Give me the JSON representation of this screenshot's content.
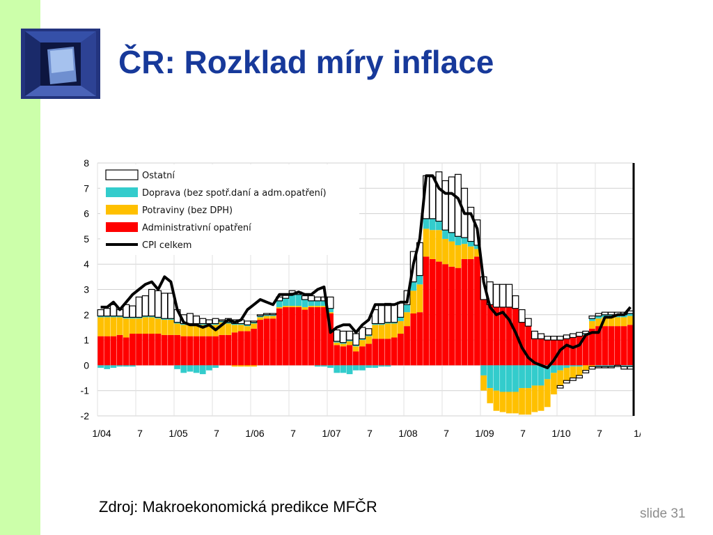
{
  "slide": {
    "title": "ČR: Rozklad míry inflace",
    "source": "Zdroj: Makroekonomická predikce MFČR",
    "slide_number": "slide 31"
  },
  "colors": {
    "side_stripe": "#ccffaa",
    "title": "#17399a",
    "ostatni": "#ffffff",
    "doprava": "#33cccc",
    "potraviny": "#ffc000",
    "administrativni": "#ff0000",
    "cpi": "#000000"
  },
  "chart_data": {
    "type": "bar",
    "stacked": true,
    "title": "",
    "xlabel": "",
    "ylabel": "",
    "ylim": [
      -2,
      8
    ],
    "yticks": [
      "8",
      "7",
      "6",
      "5",
      "4",
      "3",
      "2",
      "1",
      "0",
      "-1",
      "-2"
    ],
    "xticks": [
      "1/04",
      "7",
      "1/05",
      "7",
      "1/06",
      "7",
      "1/07",
      "7",
      "1/08",
      "7",
      "1/09",
      "7",
      "1/10",
      "7",
      "1/"
    ],
    "grid": true,
    "legend_position": "top-left",
    "categories": [
      "2004-01",
      "2004-02",
      "2004-03",
      "2004-04",
      "2004-05",
      "2004-06",
      "2004-07",
      "2004-08",
      "2004-09",
      "2004-10",
      "2004-11",
      "2004-12",
      "2005-01",
      "2005-02",
      "2005-03",
      "2005-04",
      "2005-05",
      "2005-06",
      "2005-07",
      "2005-08",
      "2005-09",
      "2005-10",
      "2005-11",
      "2005-12",
      "2006-01",
      "2006-02",
      "2006-03",
      "2006-04",
      "2006-05",
      "2006-06",
      "2006-07",
      "2006-08",
      "2006-09",
      "2006-10",
      "2006-11",
      "2006-12",
      "2007-01",
      "2007-02",
      "2007-03",
      "2007-04",
      "2007-05",
      "2007-06",
      "2007-07",
      "2007-08",
      "2007-09",
      "2007-10",
      "2007-11",
      "2007-12",
      "2008-01",
      "2008-02",
      "2008-03",
      "2008-04",
      "2008-05",
      "2008-06",
      "2008-07",
      "2008-08",
      "2008-09",
      "2008-10",
      "2008-11",
      "2008-12",
      "2009-01",
      "2009-02",
      "2009-03",
      "2009-04",
      "2009-05",
      "2009-06",
      "2009-07",
      "2009-08",
      "2009-09",
      "2009-10",
      "2009-11",
      "2009-12",
      "2010-01",
      "2010-02",
      "2010-03",
      "2010-04",
      "2010-05",
      "2010-06",
      "2010-07",
      "2010-08",
      "2010-09",
      "2010-10",
      "2010-11",
      "2010-12"
    ],
    "series": [
      {
        "name": "Administrativní opatření",
        "color": "#ff0000",
        "values": [
          1.15,
          1.15,
          1.15,
          1.2,
          1.1,
          1.25,
          1.25,
          1.25,
          1.25,
          1.25,
          1.2,
          1.2,
          1.2,
          1.15,
          1.15,
          1.15,
          1.15,
          1.15,
          1.15,
          1.2,
          1.2,
          1.3,
          1.35,
          1.35,
          1.45,
          1.8,
          1.85,
          1.85,
          2.25,
          2.3,
          2.3,
          2.3,
          2.2,
          2.3,
          2.3,
          2.3,
          2.05,
          0.8,
          0.75,
          0.8,
          0.55,
          0.75,
          0.85,
          1.05,
          1.05,
          1.05,
          1.1,
          1.25,
          1.55,
          2.05,
          2.1,
          4.3,
          4.2,
          4.1,
          4.0,
          3.9,
          3.85,
          4.2,
          4.2,
          4.3,
          2.6,
          2.4,
          2.3,
          2.3,
          2.3,
          2.25,
          1.7,
          1.55,
          1.05,
          1.05,
          1.0,
          1.0,
          1.0,
          1.05,
          1.1,
          1.15,
          1.2,
          1.45,
          1.55,
          1.55,
          1.55,
          1.55,
          1.55,
          1.6
        ]
      },
      {
        "name": "Potraviny (bez DPH)",
        "color": "#ffc000",
        "values": [
          0.75,
          0.75,
          0.75,
          0.7,
          0.75,
          0.6,
          0.6,
          0.65,
          0.65,
          0.6,
          0.6,
          0.6,
          0.45,
          0.45,
          0.45,
          0.45,
          0.45,
          0.45,
          0.45,
          0.5,
          0.45,
          0.3,
          0.25,
          0.2,
          0.2,
          0.1,
          0.1,
          0.1,
          0.05,
          0.05,
          0.05,
          0.05,
          0.1,
          0.05,
          0.05,
          0.05,
          0.05,
          0.1,
          0.1,
          0.15,
          0.2,
          0.25,
          0.3,
          0.55,
          0.55,
          0.6,
          0.55,
          0.5,
          0.55,
          0.9,
          1.1,
          1.1,
          1.15,
          1.25,
          1.0,
          1.0,
          0.9,
          0.6,
          0.5,
          0.3,
          0,
          0,
          0,
          0,
          0,
          0,
          0,
          0,
          0,
          0,
          0,
          0,
          0,
          0,
          0,
          0,
          0,
          0.3,
          0.3,
          0.35,
          0.35,
          0.35,
          0.35,
          0.35
        ]
      },
      {
        "name": "Doprava (bez spotř.daní a adm.opatření)",
        "color": "#33cccc",
        "values": [
          0.05,
          0.05,
          0.05,
          0.05,
          0.05,
          0.05,
          0.05,
          0.05,
          0.05,
          0.05,
          0.05,
          0.05,
          0.05,
          0.05,
          0.05,
          0.05,
          0.05,
          0.05,
          0.05,
          0.05,
          0.05,
          0.05,
          0.05,
          0.05,
          0.05,
          0.05,
          0.05,
          0.05,
          0.25,
          0.3,
          0.5,
          0.45,
          0.3,
          0.2,
          0.2,
          0.2,
          0.15,
          0.05,
          0.05,
          0.05,
          0.05,
          0.05,
          0.05,
          0.05,
          0.05,
          0.05,
          0.05,
          0.15,
          0.3,
          0.35,
          0.35,
          0.4,
          0.45,
          0.35,
          0.35,
          0.35,
          0.35,
          0.25,
          0.2,
          0.15,
          0,
          0,
          0,
          0,
          0,
          0,
          0,
          0,
          0,
          0,
          0,
          0,
          0,
          0,
          0,
          0,
          0.05,
          0.1,
          0.1,
          0.1,
          0.1,
          0.1,
          0.1,
          0.1
        ]
      },
      {
        "name": "Ostatní",
        "color": "#ffffff",
        "values": [
          0.25,
          0.3,
          0.45,
          0.25,
          0.5,
          0.45,
          0.8,
          0.8,
          1.05,
          1.05,
          1.0,
          1.0,
          0.5,
          0.35,
          0.4,
          0.3,
          0.2,
          0.15,
          0.2,
          0.05,
          0.15,
          0.15,
          0.15,
          0.15,
          0.05,
          0.05,
          0.05,
          0.05,
          0.15,
          0.15,
          0.1,
          0.1,
          0.15,
          0.2,
          0.15,
          0.15,
          0.45,
          0.45,
          0.45,
          0.35,
          0.45,
          0.45,
          0.25,
          0.55,
          0.75,
          0.75,
          0.7,
          0.6,
          0.55,
          1.2,
          1.3,
          1.7,
          1.65,
          1.95,
          1.95,
          2.2,
          2.45,
          1.95,
          1.35,
          1.0,
          0.9,
          0.9,
          0.9,
          0.9,
          0.9,
          0.5,
          0.5,
          0.3,
          0.3,
          0.2,
          0.15,
          0.15,
          0.15,
          0.15,
          0.15,
          0.15,
          0.1,
          0.1,
          0.1,
          0.1,
          0.1,
          0.1,
          0.1,
          0.1
        ]
      },
      {
        "name": "Doprava (bez spotř.daní a adm.opatření)",
        "color": "#33cccc",
        "negative": true,
        "values": [
          -0.1,
          -0.15,
          -0.1,
          -0.05,
          -0.05,
          -0.05,
          0,
          0,
          0,
          0,
          0,
          0,
          -0.15,
          -0.3,
          -0.25,
          -0.3,
          -0.35,
          -0.2,
          -0.1,
          0,
          0,
          0,
          0,
          0,
          0,
          0,
          0,
          0,
          0,
          0,
          0,
          0,
          0,
          0,
          -0.05,
          -0.05,
          -0.1,
          -0.3,
          -0.3,
          -0.35,
          -0.2,
          -0.2,
          -0.1,
          -0.1,
          -0.05,
          -0.05,
          0,
          0,
          0,
          0,
          0,
          0,
          0,
          0,
          0,
          0,
          0,
          0,
          0,
          0,
          -0.4,
          -0.9,
          -1.0,
          -1.05,
          -1.05,
          -1.05,
          -0.9,
          -0.9,
          -0.8,
          -0.8,
          -0.55,
          -0.3,
          -0.2,
          -0.1,
          -0.05,
          -0.05,
          0,
          0,
          -0.05,
          -0.05,
          -0.05,
          0,
          -0.05,
          -0.05
        ]
      },
      {
        "name": "Potraviny (bez DPH)",
        "color": "#ffc000",
        "negative": true,
        "values": [
          0,
          0,
          0,
          0,
          0,
          0,
          0,
          0,
          0,
          0,
          0,
          0,
          0,
          0,
          0,
          0,
          0,
          0,
          0,
          0,
          0,
          -0.05,
          -0.05,
          -0.05,
          -0.05,
          0,
          0,
          0,
          0,
          0,
          0,
          0,
          0,
          0,
          0,
          0,
          0,
          0,
          0,
          0,
          0,
          0,
          0,
          0,
          0,
          0,
          0,
          0,
          0,
          0,
          0,
          0,
          0,
          0,
          0,
          0,
          0,
          0,
          0,
          0,
          -0.6,
          -0.6,
          -0.8,
          -0.8,
          -0.85,
          -0.85,
          -1.05,
          -1.05,
          -1.05,
          -1.0,
          -1.1,
          -0.85,
          -0.6,
          -0.5,
          -0.45,
          -0.35,
          -0.2,
          -0.05,
          0,
          0,
          0,
          0,
          0,
          0
        ]
      },
      {
        "name": "Ostatní",
        "color": "#ffffff",
        "negative": true,
        "values": [
          0,
          0,
          0,
          0,
          0,
          0,
          0,
          0,
          0,
          0,
          0,
          0,
          0,
          0,
          0,
          0,
          0,
          0,
          0,
          0,
          0,
          0,
          0,
          0,
          0,
          0,
          0,
          0,
          0,
          0,
          0,
          0,
          0,
          0,
          0,
          0,
          0,
          0,
          0,
          0,
          0,
          0,
          0,
          0,
          0,
          0,
          0,
          0,
          0,
          0,
          0,
          0,
          0,
          0,
          0,
          0,
          0,
          0,
          0,
          0,
          0,
          0,
          0,
          0,
          0,
          0,
          0,
          0,
          0,
          0,
          0,
          0,
          -0.1,
          -0.1,
          -0.1,
          -0.1,
          -0.1,
          -0.1,
          -0.05,
          -0.05,
          -0.05,
          -0.05,
          -0.1,
          -0.1
        ]
      }
    ],
    "cpi": {
      "name": "CPI celkem",
      "color": "#000000",
      "values": [
        2.3,
        2.3,
        2.5,
        2.2,
        2.5,
        2.8,
        3.0,
        3.2,
        3.3,
        3.0,
        3.5,
        3.3,
        2.2,
        1.7,
        1.6,
        1.6,
        1.5,
        1.6,
        1.4,
        1.6,
        1.8,
        1.7,
        1.8,
        2.2,
        2.4,
        2.6,
        2.5,
        2.4,
        2.8,
        2.8,
        2.8,
        2.9,
        2.8,
        2.8,
        3.0,
        3.1,
        1.3,
        1.5,
        1.6,
        1.6,
        1.3,
        1.6,
        1.8,
        2.4,
        2.4,
        2.4,
        2.4,
        2.5,
        2.5,
        4.0,
        5.0,
        7.5,
        7.5,
        7.0,
        6.8,
        6.8,
        6.6,
        6.0,
        6.0,
        5.4,
        3.3,
        2.3,
        2.0,
        2.1,
        1.8,
        1.3,
        0.7,
        0.3,
        0.1,
        0.0,
        -0.1,
        0.2,
        0.6,
        0.8,
        0.7,
        0.8,
        1.2,
        1.3,
        1.3,
        1.9,
        1.9,
        2.0,
        2.0,
        2.3
      ]
    },
    "legend": [
      {
        "label": "Ostatní",
        "color": "#ffffff",
        "kind": "box"
      },
      {
        "label": "Doprava (bez spotř.daní a adm.opatření)",
        "color": "#33cccc",
        "kind": "box"
      },
      {
        "label": "Potraviny (bez DPH)",
        "color": "#ffc000",
        "kind": "box"
      },
      {
        "label": "Administrativní opatření",
        "color": "#ff0000",
        "kind": "box"
      },
      {
        "label": "CPI celkem",
        "color": "#000000",
        "kind": "line"
      }
    ]
  }
}
